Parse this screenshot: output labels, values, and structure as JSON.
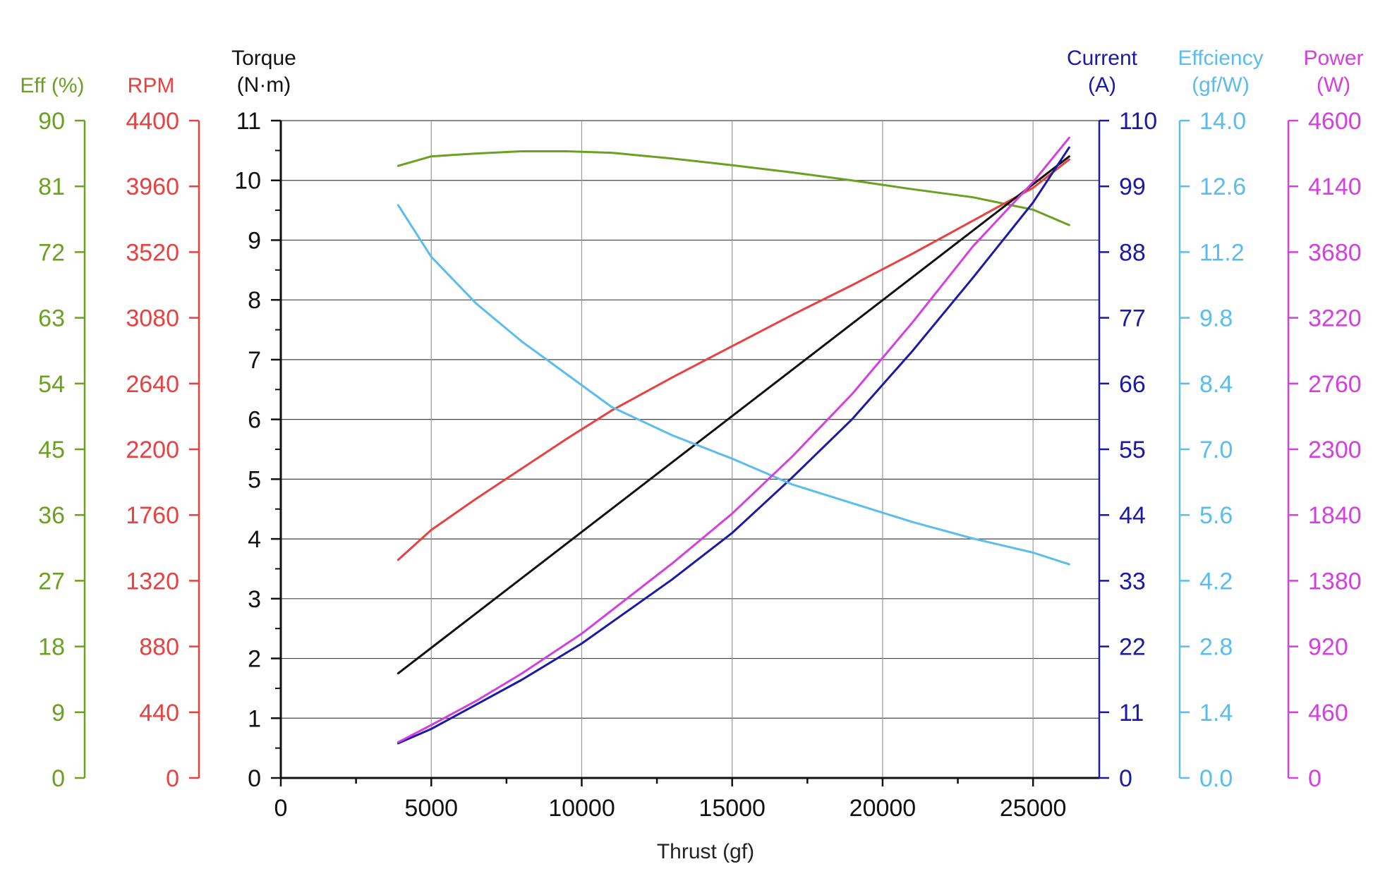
{
  "chart_data": {
    "type": "line",
    "xlabel": "Thrust (gf)",
    "xlim": [
      0,
      27200
    ],
    "xticks": [
      0,
      5000,
      10000,
      15000,
      20000,
      25000
    ],
    "grid": true,
    "axes": [
      {
        "id": "eff",
        "title": [
          "Eff (%)"
        ],
        "color": "#6aa121",
        "side": "left",
        "range": [
          0,
          90
        ],
        "ticks": [
          0,
          9,
          18,
          27,
          36,
          45,
          54,
          63,
          72,
          81,
          90
        ],
        "decimals": 0
      },
      {
        "id": "rpm",
        "title": [
          "RPM"
        ],
        "color": "#e8413f",
        "side": "left",
        "range": [
          0,
          4400
        ],
        "ticks": [
          0,
          440,
          880,
          1320,
          1760,
          2200,
          2640,
          3080,
          3520,
          3960,
          4400
        ],
        "decimals": 0
      },
      {
        "id": "torque",
        "title": [
          "Torque",
          "(N·m)"
        ],
        "color": "#111111",
        "side": "left",
        "range": [
          0,
          11
        ],
        "ticks": [
          0,
          1,
          2,
          3,
          4,
          5,
          6,
          7,
          8,
          9,
          10,
          11
        ],
        "decimals": 0
      },
      {
        "id": "current",
        "title": [
          "Current",
          "(A)"
        ],
        "color": "#1a1aa6",
        "side": "right",
        "range": [
          0,
          110
        ],
        "ticks": [
          0,
          11,
          22,
          33,
          44,
          55,
          66,
          77,
          88,
          99,
          110
        ],
        "decimals": 0
      },
      {
        "id": "efficiency",
        "title": [
          "Effciency",
          "(gf/W)"
        ],
        "color": "#5bbcee",
        "side": "right",
        "range": [
          0,
          14
        ],
        "ticks": [
          0,
          1.4,
          2.8,
          4.2,
          5.6,
          7.0,
          8.4,
          9.8,
          11.2,
          12.6,
          14.0
        ],
        "decimals": 1
      },
      {
        "id": "power",
        "title": [
          "Power",
          "(W)"
        ],
        "color": "#d43fe0",
        "side": "right",
        "range": [
          0,
          4600
        ],
        "ticks": [
          0,
          460,
          920,
          1380,
          1840,
          2300,
          2760,
          3220,
          3680,
          4140,
          4600
        ],
        "decimals": 0
      }
    ],
    "series": [
      {
        "axis": "eff",
        "color": "#6aa121",
        "x": [
          3900,
          5000,
          6500,
          8000,
          9500,
          11000,
          13000,
          15000,
          17000,
          19000,
          21000,
          23000,
          25000,
          26200
        ],
        "y": [
          83.8,
          85.1,
          85.5,
          85.8,
          85.8,
          85.6,
          84.8,
          83.9,
          82.9,
          81.8,
          80.6,
          79.5,
          77.8,
          75.7
        ]
      },
      {
        "axis": "rpm",
        "color": "#e8413f",
        "x": [
          3900,
          5000,
          6500,
          8000,
          9500,
          11000,
          13000,
          15000,
          17000,
          19000,
          21000,
          23000,
          25000,
          26200
        ],
        "y": [
          1460,
          1660,
          1870,
          2070,
          2270,
          2460,
          2680,
          2890,
          3100,
          3300,
          3510,
          3730,
          3950,
          4140
        ]
      },
      {
        "axis": "torque",
        "color": "#111111",
        "x": [
          3900,
          26200
        ],
        "y": [
          1.75,
          10.4
        ]
      },
      {
        "axis": "current",
        "color": "#1a1aa6",
        "x": [
          3900,
          5000,
          6500,
          8000,
          10000,
          13000,
          15000,
          17000,
          19000,
          21000,
          23000,
          25000,
          26200
        ],
        "y": [
          5.8,
          8.2,
          12.3,
          16.4,
          22.5,
          33.2,
          41.0,
          50.3,
          60.1,
          71.5,
          83.7,
          96.3,
          105.5
        ]
      },
      {
        "axis": "efficiency",
        "color": "#5bbcee",
        "x": [
          3900,
          5000,
          6500,
          8000,
          9500,
          11000,
          13000,
          15000,
          17000,
          19000,
          21000,
          23000,
          25000,
          26200
        ],
        "y": [
          12.2,
          11.1,
          10.1,
          9.3,
          8.6,
          7.9,
          7.3,
          6.8,
          6.25,
          5.85,
          5.45,
          5.1,
          4.8,
          4.55
        ]
      },
      {
        "axis": "power",
        "color": "#d43fe0",
        "x": [
          3900,
          5000,
          6500,
          8000,
          10000,
          13000,
          15000,
          17000,
          19000,
          21000,
          23000,
          25000,
          26200
        ],
        "y": [
          250,
          370,
          540,
          730,
          1010,
          1500,
          1850,
          2250,
          2690,
          3190,
          3720,
          4170,
          4480
        ]
      }
    ]
  }
}
